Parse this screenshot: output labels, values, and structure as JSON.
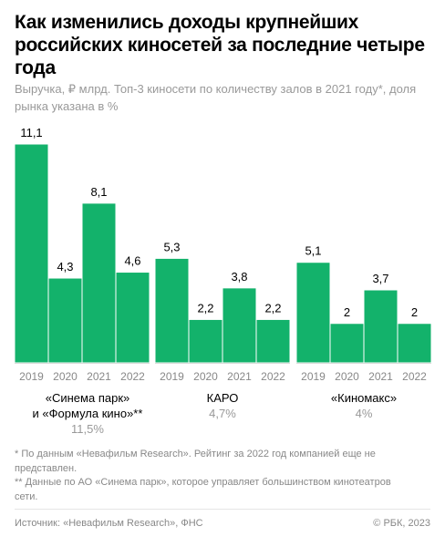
{
  "header": {
    "title": "Как изменились доходы крупнейших российских киносетей за последние четыре года",
    "subtitle": "Выручка, ₽ млрд. Топ-3 киносети по количеству залов в 2021 году*, доля рынка указана в %"
  },
  "colors": {
    "bar": "#13b26b",
    "bar_separator": "#ffffff",
    "baseline": "#d9d9d9"
  },
  "chart_data": {
    "type": "bar",
    "ylim": [
      0,
      11.1
    ],
    "grid": false,
    "years": [
      "2019",
      "2020",
      "2021",
      "2022"
    ],
    "groups": [
      {
        "name_line1": "«Синема парк»",
        "name_line2": "и «Формула кино»**",
        "share": "11,5%",
        "values": [
          11.1,
          4.3,
          8.1,
          4.6
        ],
        "value_labels": [
          "11,1",
          "4,3",
          "8,1",
          "4,6"
        ]
      },
      {
        "name_line1": "КАРО",
        "name_line2": "",
        "share": "4,7%",
        "values": [
          5.3,
          2.2,
          3.8,
          2.2
        ],
        "value_labels": [
          "5,3",
          "2,2",
          "3,8",
          "2,2"
        ]
      },
      {
        "name_line1": "«Киномакс»",
        "name_line2": "",
        "share": "4%",
        "values": [
          5.1,
          2,
          3.7,
          2
        ],
        "value_labels": [
          "5,1",
          "2",
          "3,7",
          "2"
        ]
      }
    ]
  },
  "footnotes": {
    "note1": "* По данным «Невафильм Research». Рейтинг за 2022 год компанией еще не представлен.",
    "note2": "** Данные по АО «Синема парк», которое управляет большинством кинотеатров сети."
  },
  "footer": {
    "source": "Источник: «Невафильм Research», ФНС",
    "copyright": "© РБК, 2023"
  }
}
